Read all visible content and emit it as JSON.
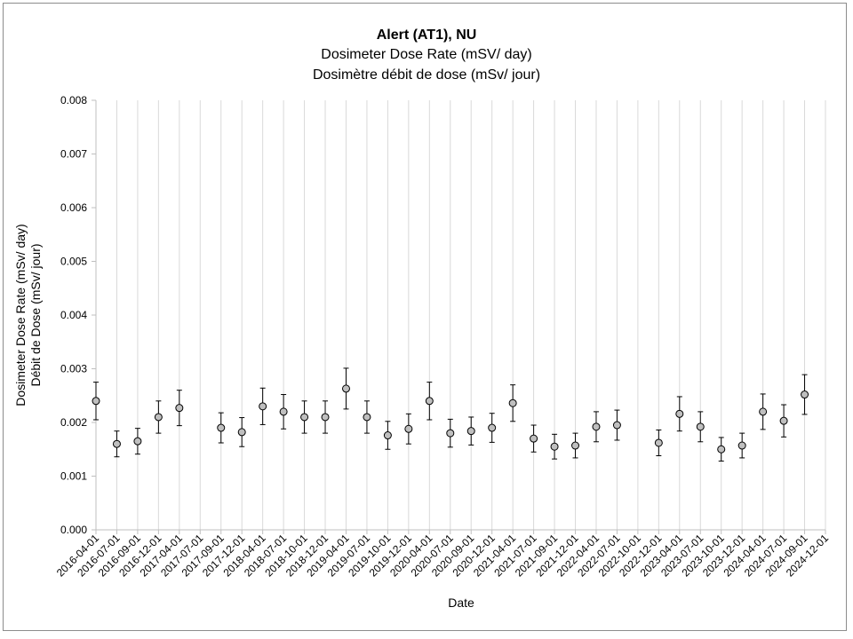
{
  "chart_data": {
    "type": "scatter",
    "title": "Alert (AT1), NU",
    "subtitle": [
      "Dosimeter Dose Rate (mSV/ day)",
      "Dosimètre débit de dose (mSv/ jour)"
    ],
    "xlabel": "Date",
    "ylabel": [
      "Dosimeter Dose Rate (mSv/ day)",
      "Débit de Dose (mSv/ jour)"
    ],
    "ylim": [
      0,
      0.008
    ],
    "yticks": [
      "0.000",
      "0.001",
      "0.002",
      "0.003",
      "0.004",
      "0.005",
      "0.006",
      "0.007",
      "0.008"
    ],
    "grid": "vertical",
    "legend": "none",
    "categories": [
      "2016-04-01",
      "2016-07-01",
      "2016-09-01",
      "2016-12-01",
      "2017-04-01",
      "2017-07-01",
      "2017-09-01",
      "2017-12-01",
      "2018-04-01",
      "2018-07-01",
      "2018-10-01",
      "2018-12-01",
      "2019-04-01",
      "2019-07-01",
      "2019-10-01",
      "2019-12-01",
      "2020-04-01",
      "2020-07-01",
      "2020-09-01",
      "2020-12-01",
      "2021-04-01",
      "2021-07-01",
      "2021-09-01",
      "2021-12-01",
      "2022-04-01",
      "2022-07-01",
      "2022-10-01",
      "2022-12-01",
      "2023-04-01",
      "2023-07-01",
      "2023-10-01",
      "2023-12-01",
      "2024-04-01",
      "2024-07-01",
      "2024-09-01",
      "2024-12-01"
    ],
    "values": [
      0.0024,
      0.0016,
      0.00165,
      0.0021,
      0.00227,
      null,
      0.0019,
      0.00182,
      0.0023,
      0.0022,
      0.0021,
      0.0021,
      0.00263,
      0.0021,
      0.00176,
      0.00188,
      0.0024,
      0.0018,
      0.00184,
      0.0019,
      0.00236,
      0.0017,
      0.00155,
      0.00157,
      0.00192,
      0.00195,
      null,
      0.00162,
      0.00216,
      0.00192,
      0.0015,
      0.00157,
      0.0022,
      0.00203,
      0.00252,
      null
    ],
    "error": [
      0.00035,
      0.00024,
      0.00024,
      0.0003,
      0.00033,
      null,
      0.00028,
      0.00027,
      0.00034,
      0.00032,
      0.0003,
      0.0003,
      0.00038,
      0.0003,
      0.00026,
      0.00028,
      0.00035,
      0.00026,
      0.00026,
      0.00027,
      0.00034,
      0.00025,
      0.00023,
      0.00023,
      0.00028,
      0.00028,
      null,
      0.00024,
      0.00032,
      0.00028,
      0.00022,
      0.00023,
      0.00033,
      0.0003,
      0.00037,
      null
    ],
    "colors": {
      "marker_fill": "#bfbfbf",
      "marker_stroke": "#000000",
      "grid": "#d9d9d9",
      "axis": "#bfbfbf",
      "error_bar": "#000000"
    }
  }
}
